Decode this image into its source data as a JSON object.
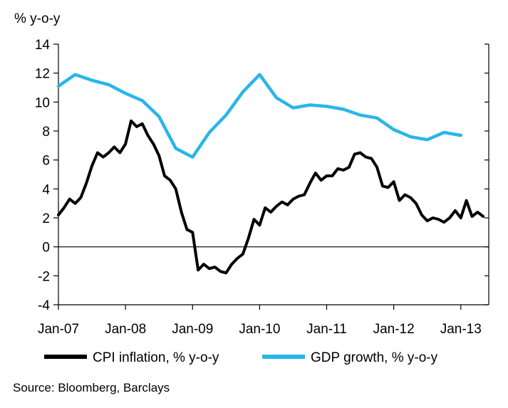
{
  "chart_data": {
    "type": "line",
    "y_unit_label": "% y-o-y",
    "ylim": [
      -4,
      14
    ],
    "yticks": [
      14,
      12,
      10,
      8,
      6,
      4,
      2,
      0,
      -2,
      -4
    ],
    "xlim": [
      "2007-01",
      "2013-06"
    ],
    "xticks": [
      {
        "label": "Jan-07",
        "x": "2007-01"
      },
      {
        "label": "Jan-08",
        "x": "2008-01"
      },
      {
        "label": "Jan-09",
        "x": "2009-01"
      },
      {
        "label": "Jan-10",
        "x": "2010-01"
      },
      {
        "label": "Jan-11",
        "x": "2011-01"
      },
      {
        "label": "Jan-12",
        "x": "2012-01"
      },
      {
        "label": "Jan-13",
        "x": "2013-01"
      }
    ],
    "grid": false,
    "legend_position": "bottom",
    "series": [
      {
        "name": "CPI inflation, % y-o-y",
        "color": "#000000",
        "points": [
          [
            "2007-01",
            2.2
          ],
          [
            "2007-02",
            2.7
          ],
          [
            "2007-03",
            3.3
          ],
          [
            "2007-04",
            3.0
          ],
          [
            "2007-05",
            3.4
          ],
          [
            "2007-06",
            4.4
          ],
          [
            "2007-07",
            5.6
          ],
          [
            "2007-08",
            6.5
          ],
          [
            "2007-09",
            6.2
          ],
          [
            "2007-10",
            6.5
          ],
          [
            "2007-11",
            6.9
          ],
          [
            "2007-12",
            6.5
          ],
          [
            "2008-01",
            7.1
          ],
          [
            "2008-02",
            8.7
          ],
          [
            "2008-03",
            8.3
          ],
          [
            "2008-04",
            8.5
          ],
          [
            "2008-05",
            7.7
          ],
          [
            "2008-06",
            7.1
          ],
          [
            "2008-07",
            6.3
          ],
          [
            "2008-08",
            4.9
          ],
          [
            "2008-09",
            4.6
          ],
          [
            "2008-10",
            4.0
          ],
          [
            "2008-11",
            2.4
          ],
          [
            "2008-12",
            1.2
          ],
          [
            "2009-01",
            1.0
          ],
          [
            "2009-02",
            -1.6
          ],
          [
            "2009-03",
            -1.2
          ],
          [
            "2009-04",
            -1.5
          ],
          [
            "2009-05",
            -1.4
          ],
          [
            "2009-06",
            -1.7
          ],
          [
            "2009-07",
            -1.8
          ],
          [
            "2009-08",
            -1.2
          ],
          [
            "2009-09",
            -0.8
          ],
          [
            "2009-10",
            -0.5
          ],
          [
            "2009-11",
            0.6
          ],
          [
            "2009-12",
            1.9
          ],
          [
            "2010-01",
            1.5
          ],
          [
            "2010-02",
            2.7
          ],
          [
            "2010-03",
            2.4
          ],
          [
            "2010-04",
            2.8
          ],
          [
            "2010-05",
            3.1
          ],
          [
            "2010-06",
            2.9
          ],
          [
            "2010-07",
            3.3
          ],
          [
            "2010-08",
            3.5
          ],
          [
            "2010-09",
            3.6
          ],
          [
            "2010-10",
            4.4
          ],
          [
            "2010-11",
            5.1
          ],
          [
            "2010-12",
            4.6
          ],
          [
            "2011-01",
            4.9
          ],
          [
            "2011-02",
            4.9
          ],
          [
            "2011-03",
            5.4
          ],
          [
            "2011-04",
            5.3
          ],
          [
            "2011-05",
            5.5
          ],
          [
            "2011-06",
            6.4
          ],
          [
            "2011-07",
            6.5
          ],
          [
            "2011-08",
            6.2
          ],
          [
            "2011-09",
            6.1
          ],
          [
            "2011-10",
            5.5
          ],
          [
            "2011-11",
            4.2
          ],
          [
            "2011-12",
            4.1
          ],
          [
            "2012-01",
            4.5
          ],
          [
            "2012-02",
            3.2
          ],
          [
            "2012-03",
            3.6
          ],
          [
            "2012-04",
            3.4
          ],
          [
            "2012-05",
            3.0
          ],
          [
            "2012-06",
            2.2
          ],
          [
            "2012-07",
            1.8
          ],
          [
            "2012-08",
            2.0
          ],
          [
            "2012-09",
            1.9
          ],
          [
            "2012-10",
            1.7
          ],
          [
            "2012-11",
            2.0
          ],
          [
            "2012-12",
            2.5
          ],
          [
            "2013-01",
            2.0
          ],
          [
            "2013-02",
            3.2
          ],
          [
            "2013-03",
            2.1
          ],
          [
            "2013-04",
            2.4
          ],
          [
            "2013-05",
            2.1
          ]
        ]
      },
      {
        "name": "GDP growth, % y-o-y",
        "color": "#29B6E8",
        "points": [
          [
            "2007-01",
            11.1
          ],
          [
            "2007-04",
            11.9
          ],
          [
            "2007-07",
            11.5
          ],
          [
            "2007-10",
            11.2
          ],
          [
            "2008-01",
            10.6
          ],
          [
            "2008-04",
            10.1
          ],
          [
            "2008-07",
            9.0
          ],
          [
            "2008-10",
            6.8
          ],
          [
            "2009-01",
            6.2
          ],
          [
            "2009-04",
            7.9
          ],
          [
            "2009-07",
            9.1
          ],
          [
            "2009-10",
            10.7
          ],
          [
            "2010-01",
            11.9
          ],
          [
            "2010-04",
            10.3
          ],
          [
            "2010-07",
            9.6
          ],
          [
            "2010-10",
            9.8
          ],
          [
            "2011-01",
            9.7
          ],
          [
            "2011-04",
            9.5
          ],
          [
            "2011-07",
            9.1
          ],
          [
            "2011-10",
            8.9
          ],
          [
            "2012-01",
            8.1
          ],
          [
            "2012-04",
            7.6
          ],
          [
            "2012-07",
            7.4
          ],
          [
            "2012-10",
            7.9
          ],
          [
            "2013-01",
            7.7
          ]
        ]
      }
    ]
  },
  "source": "Source: Bloomberg, Barclays"
}
